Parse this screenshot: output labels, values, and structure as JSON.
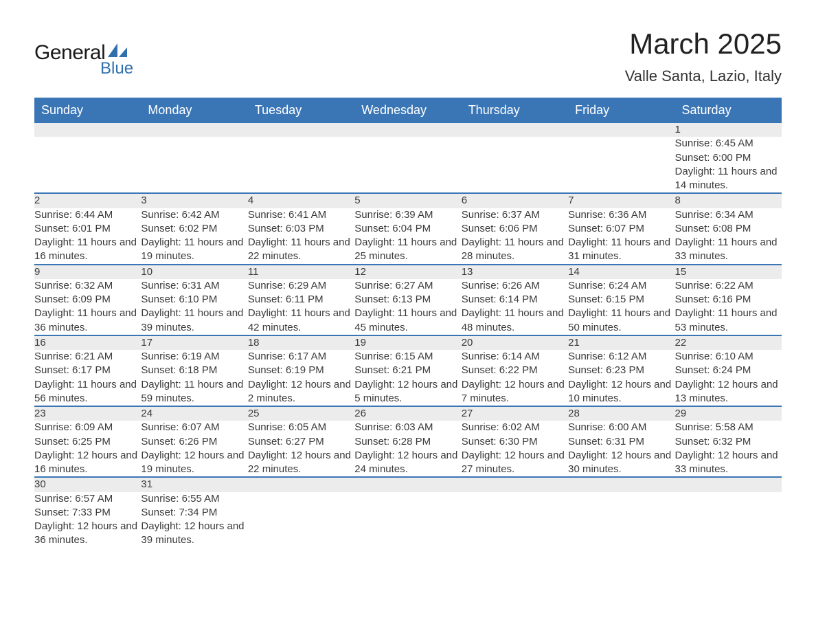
{
  "logo": {
    "main": "General",
    "sub": "Blue",
    "accent_color": "#2f6fae"
  },
  "title": {
    "month": "March 2025",
    "location": "Valle Santa, Lazio, Italy"
  },
  "colors": {
    "header_bg": "#3a76b6",
    "header_text": "#ffffff",
    "daynum_bg": "#ececec",
    "row_divider": "#3a76b6",
    "body_text": "#3a3a3a"
  },
  "typography": {
    "title_fontsize_pt": 32,
    "location_fontsize_pt": 17,
    "header_fontsize_pt": 14,
    "cell_fontsize_pt": 11
  },
  "calendar": {
    "type": "table",
    "columns": [
      "Sunday",
      "Monday",
      "Tuesday",
      "Wednesday",
      "Thursday",
      "Friday",
      "Saturday"
    ],
    "weeks": [
      [
        null,
        null,
        null,
        null,
        null,
        null,
        {
          "n": "1",
          "sunrise": "6:45 AM",
          "sunset": "6:00 PM",
          "daylight": "11 hours and 14 minutes."
        }
      ],
      [
        {
          "n": "2",
          "sunrise": "6:44 AM",
          "sunset": "6:01 PM",
          "daylight": "11 hours and 16 minutes."
        },
        {
          "n": "3",
          "sunrise": "6:42 AM",
          "sunset": "6:02 PM",
          "daylight": "11 hours and 19 minutes."
        },
        {
          "n": "4",
          "sunrise": "6:41 AM",
          "sunset": "6:03 PM",
          "daylight": "11 hours and 22 minutes."
        },
        {
          "n": "5",
          "sunrise": "6:39 AM",
          "sunset": "6:04 PM",
          "daylight": "11 hours and 25 minutes."
        },
        {
          "n": "6",
          "sunrise": "6:37 AM",
          "sunset": "6:06 PM",
          "daylight": "11 hours and 28 minutes."
        },
        {
          "n": "7",
          "sunrise": "6:36 AM",
          "sunset": "6:07 PM",
          "daylight": "11 hours and 31 minutes."
        },
        {
          "n": "8",
          "sunrise": "6:34 AM",
          "sunset": "6:08 PM",
          "daylight": "11 hours and 33 minutes."
        }
      ],
      [
        {
          "n": "9",
          "sunrise": "6:32 AM",
          "sunset": "6:09 PM",
          "daylight": "11 hours and 36 minutes."
        },
        {
          "n": "10",
          "sunrise": "6:31 AM",
          "sunset": "6:10 PM",
          "daylight": "11 hours and 39 minutes."
        },
        {
          "n": "11",
          "sunrise": "6:29 AM",
          "sunset": "6:11 PM",
          "daylight": "11 hours and 42 minutes."
        },
        {
          "n": "12",
          "sunrise": "6:27 AM",
          "sunset": "6:13 PM",
          "daylight": "11 hours and 45 minutes."
        },
        {
          "n": "13",
          "sunrise": "6:26 AM",
          "sunset": "6:14 PM",
          "daylight": "11 hours and 48 minutes."
        },
        {
          "n": "14",
          "sunrise": "6:24 AM",
          "sunset": "6:15 PM",
          "daylight": "11 hours and 50 minutes."
        },
        {
          "n": "15",
          "sunrise": "6:22 AM",
          "sunset": "6:16 PM",
          "daylight": "11 hours and 53 minutes."
        }
      ],
      [
        {
          "n": "16",
          "sunrise": "6:21 AM",
          "sunset": "6:17 PM",
          "daylight": "11 hours and 56 minutes."
        },
        {
          "n": "17",
          "sunrise": "6:19 AM",
          "sunset": "6:18 PM",
          "daylight": "11 hours and 59 minutes."
        },
        {
          "n": "18",
          "sunrise": "6:17 AM",
          "sunset": "6:19 PM",
          "daylight": "12 hours and 2 minutes."
        },
        {
          "n": "19",
          "sunrise": "6:15 AM",
          "sunset": "6:21 PM",
          "daylight": "12 hours and 5 minutes."
        },
        {
          "n": "20",
          "sunrise": "6:14 AM",
          "sunset": "6:22 PM",
          "daylight": "12 hours and 7 minutes."
        },
        {
          "n": "21",
          "sunrise": "6:12 AM",
          "sunset": "6:23 PM",
          "daylight": "12 hours and 10 minutes."
        },
        {
          "n": "22",
          "sunrise": "6:10 AM",
          "sunset": "6:24 PM",
          "daylight": "12 hours and 13 minutes."
        }
      ],
      [
        {
          "n": "23",
          "sunrise": "6:09 AM",
          "sunset": "6:25 PM",
          "daylight": "12 hours and 16 minutes."
        },
        {
          "n": "24",
          "sunrise": "6:07 AM",
          "sunset": "6:26 PM",
          "daylight": "12 hours and 19 minutes."
        },
        {
          "n": "25",
          "sunrise": "6:05 AM",
          "sunset": "6:27 PM",
          "daylight": "12 hours and 22 minutes."
        },
        {
          "n": "26",
          "sunrise": "6:03 AM",
          "sunset": "6:28 PM",
          "daylight": "12 hours and 24 minutes."
        },
        {
          "n": "27",
          "sunrise": "6:02 AM",
          "sunset": "6:30 PM",
          "daylight": "12 hours and 27 minutes."
        },
        {
          "n": "28",
          "sunrise": "6:00 AM",
          "sunset": "6:31 PM",
          "daylight": "12 hours and 30 minutes."
        },
        {
          "n": "29",
          "sunrise": "5:58 AM",
          "sunset": "6:32 PM",
          "daylight": "12 hours and 33 minutes."
        }
      ],
      [
        {
          "n": "30",
          "sunrise": "6:57 AM",
          "sunset": "7:33 PM",
          "daylight": "12 hours and 36 minutes."
        },
        {
          "n": "31",
          "sunrise": "6:55 AM",
          "sunset": "7:34 PM",
          "daylight": "12 hours and 39 minutes."
        },
        null,
        null,
        null,
        null,
        null
      ]
    ],
    "labels": {
      "sunrise": "Sunrise: ",
      "sunset": "Sunset: ",
      "daylight": "Daylight: "
    }
  }
}
